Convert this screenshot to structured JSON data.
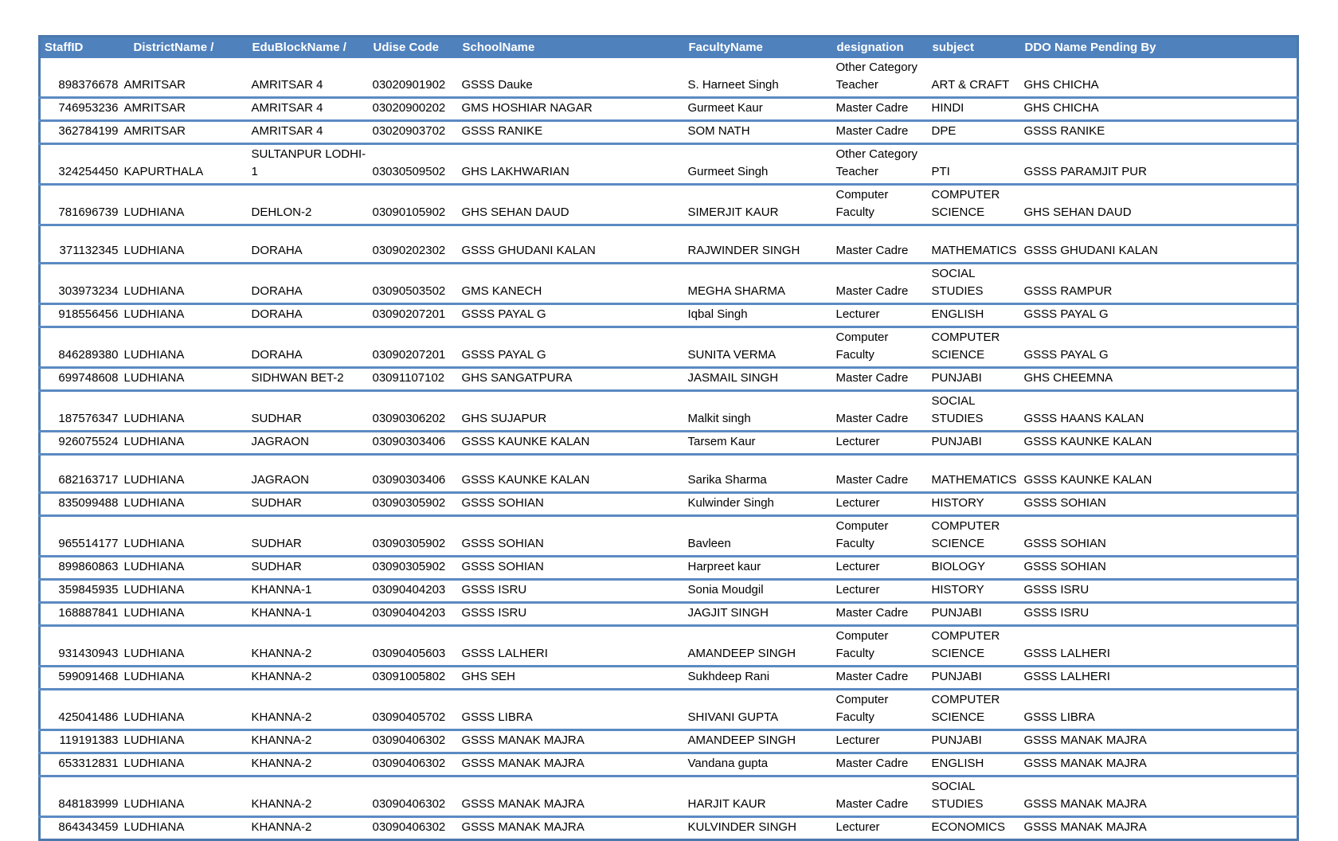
{
  "colors": {
    "header_bg": "#4f81bd",
    "header_text": "#ffffff",
    "row_separator": "#5b8ac2",
    "outer_frame": "#4a79ad",
    "body_text": "#000000"
  },
  "table": {
    "columns": [
      {
        "key": "staff_id",
        "label": "StaffID"
      },
      {
        "key": "district",
        "label": "DistrictName /"
      },
      {
        "key": "edu_block",
        "label": "EduBlockName /"
      },
      {
        "key": "udise",
        "label": "Udise Code"
      },
      {
        "key": "school",
        "label": "SchoolName"
      },
      {
        "key": "faculty",
        "label": "FacultyName"
      },
      {
        "key": "designation",
        "label": "designation"
      },
      {
        "key": "subject",
        "label": "subject"
      },
      {
        "key": "ddo",
        "label": "DDO Name Pending By"
      }
    ],
    "rows": [
      {
        "staff_id": "898376678",
        "district": "AMRITSAR",
        "edu_block": "AMRITSAR 4",
        "udise": "03020901902",
        "school": "GSSS Dauke",
        "faculty": "S. Harneet Singh",
        "designation": "Other Category Teacher",
        "subject": "ART & CRAFT",
        "ddo": "GHS CHICHA",
        "lines": 2
      },
      {
        "staff_id": "746953236",
        "district": "AMRITSAR",
        "edu_block": "AMRITSAR 4",
        "udise": "03020900202",
        "school": "GMS HOSHIAR NAGAR",
        "faculty": "Gurmeet Kaur",
        "designation": "Master Cadre",
        "subject": "HINDI",
        "ddo": "GHS CHICHA",
        "lines": 1
      },
      {
        "staff_id": "362784199",
        "district": "AMRITSAR",
        "edu_block": "AMRITSAR 4",
        "udise": "03020903702",
        "school": "GSSS RANIKE",
        "faculty": "SOM NATH",
        "designation": "Master Cadre",
        "subject": "DPE",
        "ddo": "GSSS RANIKE",
        "lines": 1
      },
      {
        "staff_id": "324254450",
        "district": "KAPURTHALA",
        "edu_block": "SULTANPUR LODHI-1",
        "udise": "03030509502",
        "school": "GHS LAKHWARIAN",
        "faculty": "Gurmeet Singh",
        "designation": "Other Category Teacher",
        "subject": "PTI",
        "ddo": "GSSS PARAMJIT PUR",
        "lines": 2
      },
      {
        "staff_id": "781696739",
        "district": "LUDHIANA",
        "edu_block": "DEHLON-2",
        "udise": "03090105902",
        "school": "GHS SEHAN DAUD",
        "faculty": "SIMERJIT KAUR",
        "designation": "Computer Faculty",
        "subject": "COMPUTER SCIENCE",
        "ddo": "GHS SEHAN DAUD",
        "lines": 2
      },
      {
        "staff_id": "371132345",
        "district": "LUDHIANA",
        "edu_block": "DORAHA",
        "udise": "03090202302",
        "school": "GSSS GHUDANI KALAN",
        "faculty": "RAJWINDER SINGH",
        "designation": "Master Cadre",
        "subject": "MATHEMATICS",
        "ddo": "GSSS GHUDANI KALAN",
        "lines": 2
      },
      {
        "staff_id": "303973234",
        "district": "LUDHIANA",
        "edu_block": "DORAHA",
        "udise": "03090503502",
        "school": "GMS KANECH",
        "faculty": "MEGHA SHARMA",
        "designation": "Master Cadre",
        "subject": "SOCIAL STUDIES",
        "ddo": "GSSS RAMPUR",
        "lines": 2
      },
      {
        "staff_id": "918556456",
        "district": "LUDHIANA",
        "edu_block": "DORAHA",
        "udise": "03090207201",
        "school": "GSSS PAYAL G",
        "faculty": "Iqbal Singh",
        "designation": "Lecturer",
        "subject": "ENGLISH",
        "ddo": "GSSS PAYAL G",
        "lines": 1
      },
      {
        "staff_id": "846289380",
        "district": "LUDHIANA",
        "edu_block": "DORAHA",
        "udise": "03090207201",
        "school": "GSSS PAYAL G",
        "faculty": "SUNITA VERMA",
        "designation": "Computer Faculty",
        "subject": "COMPUTER SCIENCE",
        "ddo": "GSSS PAYAL G",
        "lines": 2
      },
      {
        "staff_id": "699748608",
        "district": "LUDHIANA",
        "edu_block": "SIDHWAN BET-2",
        "udise": "03091107102",
        "school": "GHS SANGATPURA",
        "faculty": "JASMAIL SINGH",
        "designation": "Master Cadre",
        "subject": "PUNJABI",
        "ddo": "GHS CHEEMNA",
        "lines": 1
      },
      {
        "staff_id": "187576347",
        "district": "LUDHIANA",
        "edu_block": "SUDHAR",
        "udise": "03090306202",
        "school": "GHS SUJAPUR",
        "faculty": "Malkit singh",
        "designation": "Master Cadre",
        "subject": "SOCIAL STUDIES",
        "ddo": "GSSS HAANS KALAN",
        "lines": 2
      },
      {
        "staff_id": "926075524",
        "district": "LUDHIANA",
        "edu_block": "JAGRAON",
        "udise": "03090303406",
        "school": "GSSS KAUNKE KALAN",
        "faculty": "Tarsem Kaur",
        "designation": "Lecturer",
        "subject": "PUNJABI",
        "ddo": "GSSS KAUNKE KALAN",
        "lines": 1
      },
      {
        "staff_id": "682163717",
        "district": "LUDHIANA",
        "edu_block": "JAGRAON",
        "udise": "03090303406",
        "school": "GSSS KAUNKE KALAN",
        "faculty": "Sarika Sharma",
        "designation": "Master Cadre",
        "subject": "MATHEMATICS",
        "ddo": "GSSS KAUNKE KALAN",
        "lines": 2
      },
      {
        "staff_id": "835099488",
        "district": "LUDHIANA",
        "edu_block": "SUDHAR",
        "udise": "03090305902",
        "school": "GSSS SOHIAN",
        "faculty": "Kulwinder Singh",
        "designation": "Lecturer",
        "subject": "HISTORY",
        "ddo": "GSSS SOHIAN",
        "lines": 1
      },
      {
        "staff_id": "965514177",
        "district": "LUDHIANA",
        "edu_block": "SUDHAR",
        "udise": "03090305902",
        "school": "GSSS SOHIAN",
        "faculty": "Bavleen",
        "designation": "Computer Faculty",
        "subject": "COMPUTER SCIENCE",
        "ddo": "GSSS SOHIAN",
        "lines": 2
      },
      {
        "staff_id": "899860863",
        "district": "LUDHIANA",
        "edu_block": "SUDHAR",
        "udise": "03090305902",
        "school": "GSSS SOHIAN",
        "faculty": "Harpreet kaur",
        "designation": "Lecturer",
        "subject": "BIOLOGY",
        "ddo": "GSSS SOHIAN",
        "lines": 1
      },
      {
        "staff_id": "359845935",
        "district": "LUDHIANA",
        "edu_block": "KHANNA-1",
        "udise": "03090404203",
        "school": "GSSS ISRU",
        "faculty": "Sonia Moudgil",
        "designation": "Lecturer",
        "subject": "HISTORY",
        "ddo": "GSSS ISRU",
        "lines": 1
      },
      {
        "staff_id": "168887841",
        "district": "LUDHIANA",
        "edu_block": "KHANNA-1",
        "udise": "03090404203",
        "school": "GSSS ISRU",
        "faculty": "JAGJIT SINGH",
        "designation": "Master Cadre",
        "subject": "PUNJABI",
        "ddo": "GSSS ISRU",
        "lines": 1
      },
      {
        "staff_id": "931430943",
        "district": "LUDHIANA",
        "edu_block": "KHANNA-2",
        "udise": "03090405603",
        "school": "GSSS LALHERI",
        "faculty": "AMANDEEP SINGH",
        "designation": "Computer Faculty",
        "subject": "COMPUTER SCIENCE",
        "ddo": "GSSS LALHERI",
        "lines": 2
      },
      {
        "staff_id": "599091468",
        "district": "LUDHIANA",
        "edu_block": "KHANNA-2",
        "udise": "03091005802",
        "school": "GHS SEH",
        "faculty": "Sukhdeep Rani",
        "designation": "Master Cadre",
        "subject": "PUNJABI",
        "ddo": "GSSS LALHERI",
        "lines": 1
      },
      {
        "staff_id": "425041486",
        "district": "LUDHIANA",
        "edu_block": "KHANNA-2",
        "udise": "03090405702",
        "school": "GSSS LIBRA",
        "faculty": "SHIVANI GUPTA",
        "designation": "Computer Faculty",
        "subject": "COMPUTER SCIENCE",
        "ddo": "GSSS LIBRA",
        "lines": 2
      },
      {
        "staff_id": "119191383",
        "district": "LUDHIANA",
        "edu_block": "KHANNA-2",
        "udise": "03090406302",
        "school": "GSSS MANAK MAJRA",
        "faculty": "AMANDEEP SINGH",
        "designation": "Lecturer",
        "subject": "PUNJABI",
        "ddo": "GSSS MANAK MAJRA",
        "lines": 1
      },
      {
        "staff_id": "653312831",
        "district": "LUDHIANA",
        "edu_block": "KHANNA-2",
        "udise": "03090406302",
        "school": "GSSS MANAK MAJRA",
        "faculty": "Vandana gupta",
        "designation": "Master Cadre",
        "subject": "ENGLISH",
        "ddo": "GSSS MANAK MAJRA",
        "lines": 1
      },
      {
        "staff_id": "848183999",
        "district": "LUDHIANA",
        "edu_block": "KHANNA-2",
        "udise": "03090406302",
        "school": "GSSS MANAK MAJRA",
        "faculty": "HARJIT KAUR",
        "designation": "Master Cadre",
        "subject": "SOCIAL STUDIES",
        "ddo": "GSSS MANAK MAJRA",
        "lines": 2
      },
      {
        "staff_id": "864343459",
        "district": "LUDHIANA",
        "edu_block": "KHANNA-2",
        "udise": "03090406302",
        "school": "GSSS MANAK MAJRA",
        "faculty": "KULVINDER SINGH",
        "designation": "Lecturer",
        "subject": "ECONOMICS",
        "ddo": "GSSS MANAK MAJRA",
        "lines": 1
      }
    ]
  }
}
